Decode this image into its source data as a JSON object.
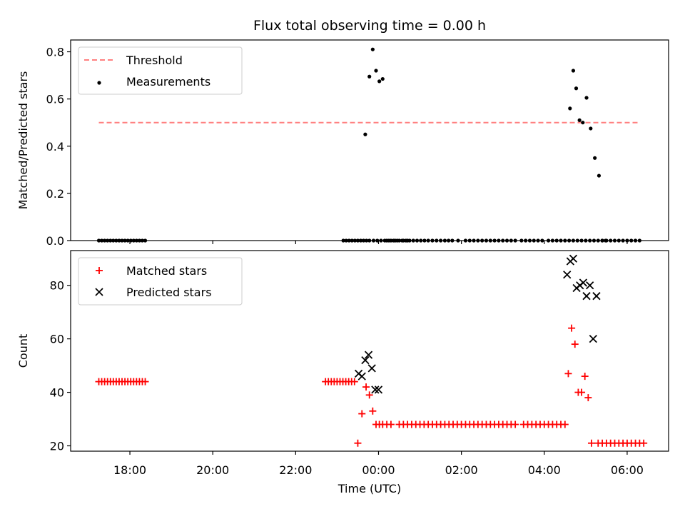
{
  "chart_data": {
    "type": "scatter",
    "title": "Flux total observing time = 0.00 h",
    "xlabel": "Time (UTC)",
    "x_unit": "hours (UTC, times after midnight shown as 24+)",
    "xlim": [
      16.57,
      31.0
    ],
    "xticks": [
      {
        "value": 18,
        "label": "18:00"
      },
      {
        "value": 20,
        "label": "20:00"
      },
      {
        "value": 22,
        "label": "22:00"
      },
      {
        "value": 24,
        "label": "00:00"
      },
      {
        "value": 26,
        "label": "02:00"
      },
      {
        "value": 28,
        "label": "04:00"
      },
      {
        "value": 30,
        "label": "06:00"
      }
    ],
    "grid": false,
    "panels": [
      {
        "ylabel": "Matched/Predicted stars",
        "ylim": [
          0,
          0.85
        ],
        "yticks": [
          {
            "value": 0.0,
            "label": "0.0"
          },
          {
            "value": 0.2,
            "label": "0.2"
          },
          {
            "value": 0.4,
            "label": "0.4"
          },
          {
            "value": 0.6,
            "label": "0.6"
          },
          {
            "value": 0.8,
            "label": "0.8"
          }
        ],
        "legend_position": "top-left",
        "series": [
          {
            "name": "Threshold",
            "kind": "dashed-line",
            "color": "#ff7f7f",
            "x": [
              17.25,
              30.3
            ],
            "y": [
              0.5,
              0.5
            ]
          },
          {
            "name": "Measurements",
            "kind": "dot",
            "color": "#000000",
            "x": [
              17.25,
              17.32,
              17.39,
              17.46,
              17.53,
              17.6,
              17.67,
              17.74,
              17.81,
              17.88,
              17.95,
              18.02,
              18.09,
              18.16,
              18.23,
              18.3,
              18.37,
              23.15,
              23.22,
              23.29,
              23.36,
              23.43,
              23.5,
              23.57,
              23.64,
              23.71,
              23.78,
              23.88,
              23.97,
              24.06,
              24.15,
              24.25,
              24.36,
              24.45,
              24.57,
              24.66,
              24.75,
              24.84,
              24.93,
              25.02,
              25.11,
              25.2,
              25.3,
              25.4,
              25.5,
              25.6,
              25.69,
              25.78,
              25.92,
              26.1,
              26.2,
              26.3,
              26.4,
              26.5,
              26.6,
              26.7,
              26.8,
              26.9,
              27.0,
              27.1,
              27.2,
              27.3,
              27.45,
              27.55,
              27.65,
              27.75,
              27.85,
              27.95,
              28.1,
              28.2,
              28.3,
              28.4,
              28.5,
              28.6,
              28.7,
              28.8,
              28.9,
              29.0,
              29.1,
              29.2,
              29.3,
              29.4,
              29.5,
              29.6,
              29.7,
              29.8,
              29.9,
              30.0,
              30.1,
              30.2,
              30.3,
              23.68,
              23.78,
              23.86,
              23.94,
              24.02,
              24.1,
              24.2,
              24.3,
              24.4,
              24.5,
              24.6,
              24.7,
              28.62,
              28.7,
              28.77,
              28.85,
              28.93,
              29.02,
              29.12,
              29.22,
              29.32,
              29.4,
              29.48
            ],
            "y": [
              0,
              0,
              0,
              0,
              0,
              0,
              0,
              0,
              0,
              0,
              0,
              0,
              0,
              0,
              0,
              0,
              0,
              0,
              0,
              0,
              0,
              0,
              0,
              0,
              0,
              0,
              0,
              0,
              0,
              0,
              0,
              0,
              0,
              0,
              0,
              0,
              0,
              0,
              0,
              0,
              0,
              0,
              0,
              0,
              0,
              0,
              0,
              0,
              0,
              0,
              0,
              0,
              0,
              0,
              0,
              0,
              0,
              0,
              0,
              0,
              0,
              0,
              0,
              0,
              0,
              0,
              0,
              0,
              0,
              0,
              0,
              0,
              0,
              0,
              0,
              0,
              0,
              0,
              0,
              0,
              0,
              0,
              0,
              0,
              0,
              0,
              0,
              0,
              0,
              0,
              0,
              0.45,
              0.695,
              0.81,
              0.72,
              0.675,
              0.685,
              0,
              0,
              0,
              0,
              0,
              0,
              0.56,
              0.72,
              0.645,
              0.51,
              0.5,
              0.605,
              0.475,
              0.35,
              0.275,
              0,
              0
            ]
          }
        ]
      },
      {
        "ylabel": "Count",
        "ylim": [
          18,
          93
        ],
        "yticks": [
          {
            "value": 20,
            "label": "20"
          },
          {
            "value": 40,
            "label": "40"
          },
          {
            "value": 60,
            "label": "60"
          },
          {
            "value": 80,
            "label": "80"
          }
        ],
        "legend_position": "top-left",
        "series": [
          {
            "name": "Matched stars",
            "kind": "plus",
            "color": "#ff0000",
            "x": [
              17.25,
              17.32,
              17.39,
              17.46,
              17.53,
              17.6,
              17.67,
              17.74,
              17.81,
              17.88,
              17.95,
              18.02,
              18.09,
              18.16,
              18.23,
              18.3,
              18.37,
              22.72,
              22.79,
              22.86,
              22.93,
              23.0,
              23.07,
              23.14,
              23.21,
              23.28,
              23.35,
              23.42,
              23.5,
              23.6,
              23.7,
              23.78,
              23.86,
              23.94,
              24.02,
              24.1,
              24.2,
              24.3,
              24.5,
              24.6,
              24.7,
              24.8,
              24.9,
              25.0,
              25.1,
              25.2,
              25.3,
              25.4,
              25.5,
              25.6,
              25.7,
              25.8,
              25.9,
              26.0,
              26.1,
              26.2,
              26.3,
              26.4,
              26.5,
              26.6,
              26.7,
              26.8,
              26.9,
              27.0,
              27.1,
              27.2,
              27.3,
              27.5,
              27.6,
              27.7,
              27.8,
              27.9,
              28.0,
              28.1,
              28.2,
              28.3,
              28.4,
              28.5,
              28.58,
              28.66,
              28.74,
              28.82,
              28.9,
              28.98,
              29.06,
              29.14,
              29.3,
              29.4,
              29.5,
              29.6,
              29.7,
              29.8,
              29.9,
              30.0,
              30.1,
              30.2,
              30.3,
              30.4
            ],
            "y": [
              44,
              44,
              44,
              44,
              44,
              44,
              44,
              44,
              44,
              44,
              44,
              44,
              44,
              44,
              44,
              44,
              44,
              44,
              44,
              44,
              44,
              44,
              44,
              44,
              44,
              44,
              44,
              44,
              21,
              32,
              42,
              39,
              33,
              28,
              28,
              28,
              28,
              28,
              28,
              28,
              28,
              28,
              28,
              28,
              28,
              28,
              28,
              28,
              28,
              28,
              28,
              28,
              28,
              28,
              28,
              28,
              28,
              28,
              28,
              28,
              28,
              28,
              28,
              28,
              28,
              28,
              28,
              28,
              28,
              28,
              28,
              28,
              28,
              28,
              28,
              28,
              28,
              28,
              47,
              64,
              58,
              40,
              40,
              46,
              38,
              21,
              21,
              21,
              21,
              21,
              21,
              21,
              21,
              21,
              21,
              21,
              21,
              21
            ]
          },
          {
            "name": "Predicted stars",
            "kind": "x",
            "color": "#000000",
            "x": [
              23.52,
              23.6,
              23.68,
              23.76,
              23.84,
              23.92,
              24.0,
              28.55,
              28.63,
              28.7,
              28.78,
              28.86,
              28.94,
              29.02,
              29.1,
              29.18,
              29.26
            ],
            "y": [
              47,
              46,
              52,
              54,
              49,
              41,
              41,
              84,
              89,
              90,
              79,
              80,
              81,
              76,
              80,
              60,
              76
            ]
          }
        ]
      }
    ]
  }
}
